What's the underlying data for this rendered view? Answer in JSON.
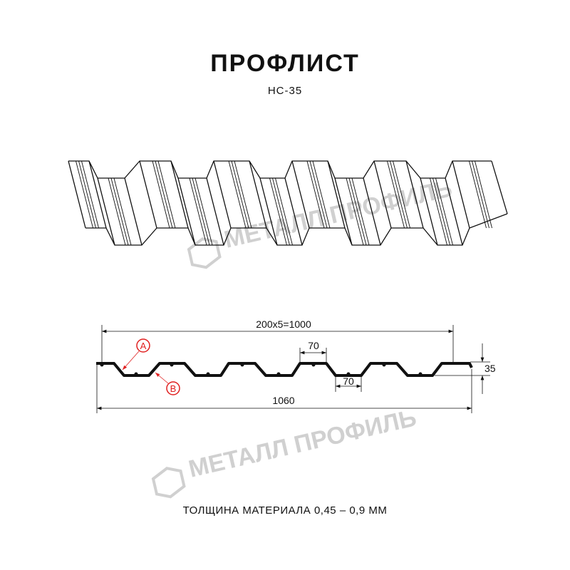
{
  "title": "ПРОФЛИСТ",
  "model": "НС-35",
  "watermark": "МЕТАЛЛ ПРОФИЛЬ",
  "dimensions": {
    "pitch_total": "200x5=1000",
    "top_flat": "70",
    "bottom_flat": "70",
    "height": "35",
    "total_width": "1060"
  },
  "markers": {
    "a": "A",
    "b": "B"
  },
  "marker_color": "#e02020",
  "footer": "ТОЛЩИНА МАТЕРИАЛА 0,45 – 0,9 ММ"
}
